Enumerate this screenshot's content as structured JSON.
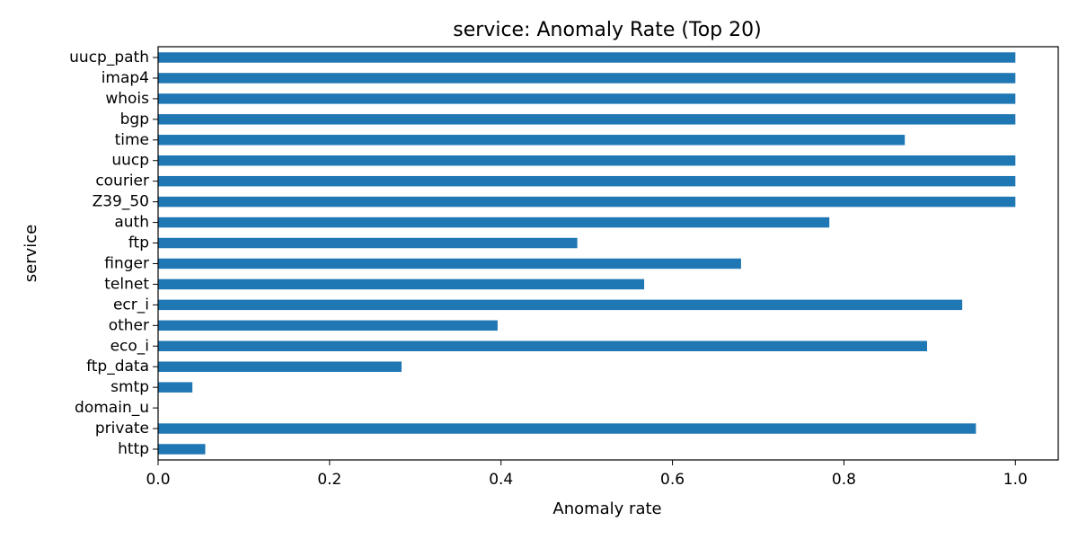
{
  "chart_data": {
    "type": "bar",
    "orientation": "horizontal",
    "title": "service: Anomaly Rate (Top 20)",
    "xlabel": "Anomaly rate",
    "ylabel": "service",
    "xlim": [
      0.0,
      1.05
    ],
    "xticks": [
      0.0,
      0.2,
      0.4,
      0.6,
      0.8,
      1.0
    ],
    "xtick_labels": [
      "0.0",
      "0.2",
      "0.4",
      "0.6",
      "0.8",
      "1.0"
    ],
    "categories": [
      "uucp_path",
      "imap4",
      "whois",
      "bgp",
      "time",
      "uucp",
      "courier",
      "Z39_50",
      "auth",
      "ftp",
      "finger",
      "telnet",
      "ecr_i",
      "other",
      "eco_i",
      "ftp_data",
      "smtp",
      "domain_u",
      "private",
      "http"
    ],
    "values": [
      1.0,
      1.0,
      1.0,
      1.0,
      0.871,
      1.0,
      1.0,
      1.0,
      0.783,
      0.489,
      0.68,
      0.567,
      0.938,
      0.396,
      0.897,
      0.284,
      0.04,
      0.0,
      0.954,
      0.055
    ],
    "color": "#1f77b4",
    "grid": false,
    "legend": "none"
  }
}
